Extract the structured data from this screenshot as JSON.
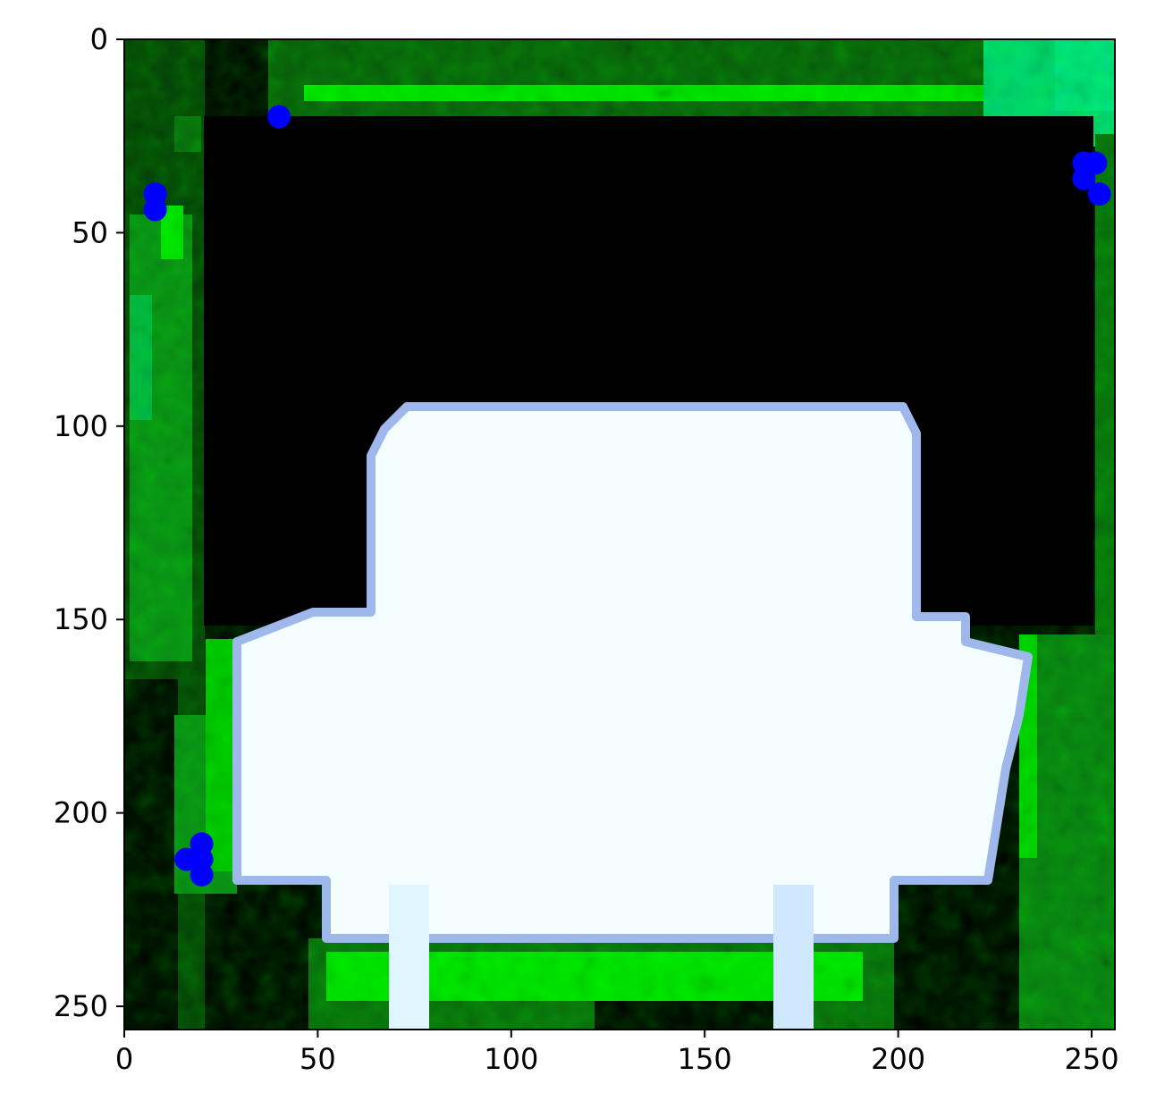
{
  "chart_data": {
    "type": "scatter",
    "title": "",
    "xlabel": "",
    "ylabel": "",
    "xlim": [
      0,
      256
    ],
    "ylim": [
      256,
      0
    ],
    "y_inverted": true,
    "x_ticks": [
      0,
      50,
      100,
      150,
      200,
      250
    ],
    "y_ticks": [
      0,
      50,
      100,
      150,
      200,
      250
    ],
    "x_tick_labels": [
      "0",
      "50",
      "100",
      "150",
      "200",
      "250"
    ],
    "y_tick_labels": [
      "0",
      "50",
      "100",
      "150",
      "200",
      "250"
    ],
    "grid": false,
    "background": "256x256 pixel image: dark green/black scene with bright white rounded block shape in center-bottom",
    "series": [
      {
        "marker": "circle",
        "color": "#0000ff",
        "x": [
          40,
          8,
          8,
          20,
          20,
          16,
          20,
          248,
          251,
          248,
          252
        ],
        "y": [
          20,
          40,
          44,
          208,
          212,
          212,
          216,
          32,
          32,
          36,
          40
        ]
      }
    ]
  },
  "colors": {
    "points": "#0000ff",
    "shape_fill": "#f4fdff",
    "shape_edge": "#9fb8ec",
    "green_bright": "#00e600",
    "green_dark": "#064d0a",
    "teal": "#00d97a",
    "background": "#000000"
  }
}
